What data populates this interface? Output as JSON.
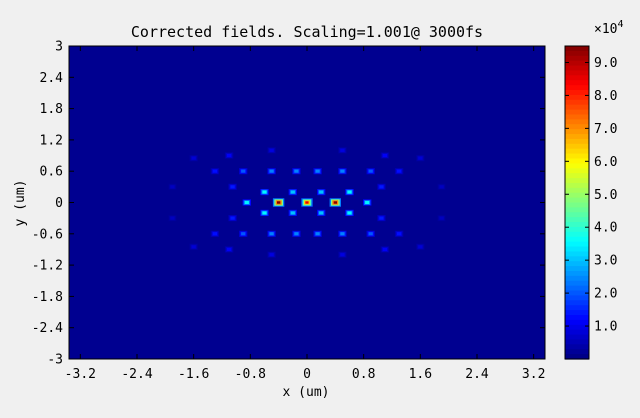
{
  "chart_data": {
    "type": "heatmap",
    "title": "Corrected fields. Scaling=1.001@ 3000fs",
    "xlabel": "x (um)",
    "ylabel": "y (um)",
    "xlim": [
      -3.36,
      3.36
    ],
    "ylim": [
      -3,
      3
    ],
    "x_ticks": [
      "-3.2",
      "-2.4",
      "-1.6",
      "-0.8",
      "0",
      "0.8",
      "1.6",
      "2.4",
      "3.2"
    ],
    "x_tick_values": [
      -3.2,
      -2.4,
      -1.6,
      -0.8,
      0,
      0.8,
      1.6,
      2.4,
      3.2
    ],
    "y_ticks": [
      "3",
      "2.4",
      "1.8",
      "1.2",
      "0.6",
      "0",
      "-0.6",
      "-1.2",
      "-1.8",
      "-2.4",
      "-3"
    ],
    "y_tick_values": [
      3,
      2.4,
      1.8,
      1.2,
      0.6,
      0,
      -0.6,
      -1.2,
      -1.8,
      -2.4,
      -3
    ],
    "colorbar": {
      "min": 0,
      "max": 95000,
      "ticks": [
        "1.0",
        "2.0",
        "3.0",
        "4.0",
        "5.0",
        "6.0",
        "7.0",
        "8.0",
        "9.0"
      ],
      "tick_values": [
        10000,
        20000,
        30000,
        40000,
        50000,
        60000,
        70000,
        80000,
        90000
      ],
      "exponent_label": "×10",
      "exponent_power": "4",
      "colormap": "jet"
    },
    "background_value": 1500,
    "peaks": [
      {
        "x": -0.4,
        "y": 0,
        "value": 95000
      },
      {
        "x": 0,
        "y": 0,
        "value": 85000
      },
      {
        "x": 0.4,
        "y": 0,
        "value": 95000
      }
    ],
    "features": [
      {
        "x": -0.2,
        "y": 0.2,
        "value": 30000
      },
      {
        "x": 0.2,
        "y": 0.2,
        "value": 30000
      },
      {
        "x": -0.2,
        "y": -0.2,
        "value": 30000
      },
      {
        "x": 0.2,
        "y": -0.2,
        "value": 30000
      },
      {
        "x": -0.6,
        "y": 0.2,
        "value": 35000
      },
      {
        "x": 0.6,
        "y": 0.2,
        "value": 35000
      },
      {
        "x": -0.6,
        "y": -0.2,
        "value": 35000
      },
      {
        "x": 0.6,
        "y": -0.2,
        "value": 35000
      },
      {
        "x": -0.85,
        "y": 0,
        "value": 35000
      },
      {
        "x": 0.85,
        "y": 0,
        "value": 35000
      },
      {
        "x": -0.5,
        "y": 0.6,
        "value": 24000
      },
      {
        "x": -0.15,
        "y": 0.6,
        "value": 24000
      },
      {
        "x": 0.15,
        "y": 0.6,
        "value": 24000
      },
      {
        "x": 0.5,
        "y": 0.6,
        "value": 24000
      },
      {
        "x": -0.5,
        "y": -0.6,
        "value": 24000
      },
      {
        "x": -0.15,
        "y": -0.6,
        "value": 24000
      },
      {
        "x": 0.15,
        "y": -0.6,
        "value": 24000
      },
      {
        "x": 0.5,
        "y": -0.6,
        "value": 24000
      },
      {
        "x": -0.9,
        "y": 0.6,
        "value": 20000
      },
      {
        "x": 0.9,
        "y": 0.6,
        "value": 20000
      },
      {
        "x": -0.9,
        "y": -0.6,
        "value": 20000
      },
      {
        "x": 0.9,
        "y": -0.6,
        "value": 20000
      },
      {
        "x": -1.05,
        "y": 0.3,
        "value": 14000
      },
      {
        "x": 1.05,
        "y": 0.3,
        "value": 14000
      },
      {
        "x": -1.05,
        "y": -0.3,
        "value": 14000
      },
      {
        "x": 1.05,
        "y": -0.3,
        "value": 14000
      },
      {
        "x": -1.3,
        "y": 0.6,
        "value": 13000
      },
      {
        "x": 1.3,
        "y": 0.6,
        "value": 13000
      },
      {
        "x": -1.3,
        "y": -0.6,
        "value": 13000
      },
      {
        "x": 1.3,
        "y": -0.6,
        "value": 13000
      },
      {
        "x": -1.1,
        "y": 0.9,
        "value": 11000
      },
      {
        "x": 1.1,
        "y": 0.9,
        "value": 11000
      },
      {
        "x": -1.1,
        "y": -0.9,
        "value": 11000
      },
      {
        "x": 1.1,
        "y": -0.9,
        "value": 11000
      },
      {
        "x": -0.5,
        "y": 1.0,
        "value": 9000
      },
      {
        "x": 0.5,
        "y": 1.0,
        "value": 9000
      },
      {
        "x": -0.5,
        "y": -1.0,
        "value": 9000
      },
      {
        "x": 0.5,
        "y": -1.0,
        "value": 9000
      },
      {
        "x": -1.6,
        "y": 0.85,
        "value": 8000
      },
      {
        "x": 1.6,
        "y": 0.85,
        "value": 8000
      },
      {
        "x": -1.6,
        "y": -0.85,
        "value": 8000
      },
      {
        "x": 1.6,
        "y": -0.85,
        "value": 8000
      },
      {
        "x": -1.9,
        "y": 0.3,
        "value": 6000
      },
      {
        "x": 1.9,
        "y": 0.3,
        "value": 6000
      },
      {
        "x": -1.9,
        "y": -0.3,
        "value": 6000
      },
      {
        "x": 1.9,
        "y": -0.3,
        "value": 6000
      }
    ]
  }
}
